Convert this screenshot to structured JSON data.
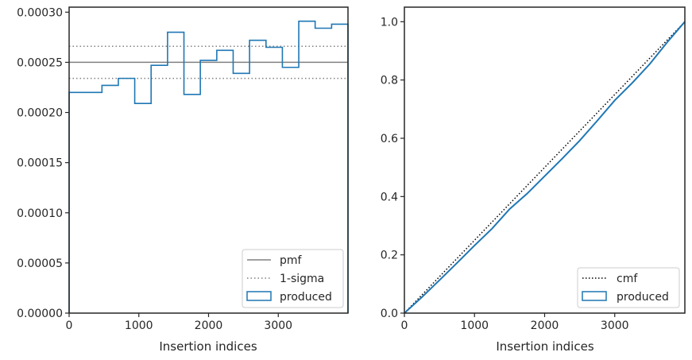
{
  "colors": {
    "produced": "#1f77b4",
    "pmf": "#808080",
    "sigma": "#808080",
    "cmf": "#000000",
    "axis": "#262626"
  },
  "chart_data": [
    {
      "type": "step",
      "xlabel": "Insertion indices",
      "ylabel": "",
      "xlim": [
        0,
        4000
      ],
      "ylim": [
        0,
        0.000305
      ],
      "xticks": [
        0,
        1000,
        2000,
        3000
      ],
      "xtick_labels": [
        "0",
        "1000",
        "2000",
        "3000"
      ],
      "yticks": [
        0,
        5e-05,
        0.0001,
        0.00015,
        0.0002,
        0.00025,
        0.0003
      ],
      "ytick_labels": [
        "0.00000",
        "0.00005",
        "0.00010",
        "0.00015",
        "0.00020",
        "0.00025",
        "0.00030"
      ],
      "legend_position": "bottom-right",
      "legend": [
        "pmf",
        "1-sigma",
        "produced"
      ],
      "pmf": 0.00025,
      "sigma_band": [
        0.000234,
        0.000266
      ],
      "bin_edges": [
        0,
        471,
        706,
        941,
        1176,
        1412,
        1647,
        1882,
        2118,
        2353,
        2588,
        2824,
        3059,
        3294,
        3529,
        3765,
        4000
      ],
      "produced": [
        0.00022,
        0.000227,
        0.000234,
        0.000209,
        0.000247,
        0.00028,
        0.000218,
        0.000252,
        0.000262,
        0.000239,
        0.000272,
        0.000265,
        0.000245,
        0.000291,
        0.000284,
        0.000288
      ]
    },
    {
      "type": "line",
      "xlabel": "Insertion indices",
      "ylabel": "",
      "xlim": [
        0,
        4000
      ],
      "ylim": [
        0,
        1.05
      ],
      "xticks": [
        0,
        1000,
        2000,
        3000
      ],
      "xtick_labels": [
        "0",
        "1000",
        "2000",
        "3000"
      ],
      "yticks": [
        0,
        0.2,
        0.4,
        0.6,
        0.8,
        1.0
      ],
      "ytick_labels": [
        "0.0",
        "0.2",
        "0.4",
        "0.6",
        "0.8",
        "1.0"
      ],
      "legend_position": "bottom-right",
      "legend": [
        "cmf",
        "produced"
      ],
      "cmf": {
        "x": [
          0,
          4000
        ],
        "y": [
          0,
          1
        ]
      },
      "produced": {
        "x": [
          0,
          250,
          500,
          750,
          1000,
          1250,
          1500,
          1750,
          2000,
          2250,
          2500,
          2750,
          3000,
          3250,
          3500,
          3750,
          4000
        ],
        "y": [
          0,
          0.055,
          0.113,
          0.172,
          0.232,
          0.29,
          0.357,
          0.41,
          0.47,
          0.53,
          0.592,
          0.66,
          0.73,
          0.79,
          0.855,
          0.93,
          1.0
        ]
      }
    }
  ]
}
